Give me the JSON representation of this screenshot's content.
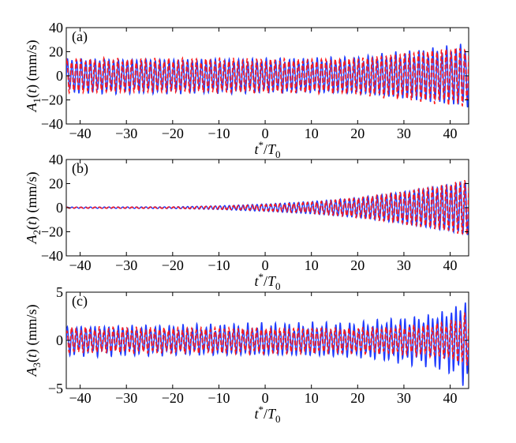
{
  "chart_data": [
    {
      "type": "line",
      "panel_label": "(a)",
      "xlabel": "t*/T0",
      "ylabel": "A1(t) (mm/s)",
      "xlim": [
        -43,
        44
      ],
      "ylim": [
        -40,
        40
      ],
      "xticks": [
        -40,
        -30,
        -20,
        -10,
        0,
        10,
        20,
        30,
        40
      ],
      "xtick_labels": [
        "−40",
        "−30",
        "−20",
        "−10",
        "0",
        "10",
        "20",
        "30",
        "40"
      ],
      "yticks": [
        -40,
        -20,
        0,
        20,
        40
      ],
      "ytick_labels": [
        "−40",
        "−20",
        "0",
        "20",
        "40"
      ],
      "grid": false,
      "period": 1,
      "series": [
        {
          "color": "#1f3cff",
          "style": "solid",
          "envelope_t": [
            -43,
            -20,
            0,
            10,
            20,
            25,
            30,
            35,
            40,
            43.5
          ],
          "envelope_amp": [
            13,
            13,
            13,
            13,
            14,
            16,
            18,
            20,
            22,
            24
          ],
          "noise": 0.18
        },
        {
          "color": "#ff1a1a",
          "style": "dashed",
          "envelope_t": [
            -43,
            -20,
            0,
            10,
            20,
            25,
            30,
            35,
            40,
            43.5
          ],
          "envelope_amp": [
            13,
            13,
            13,
            13,
            14,
            16,
            18,
            20,
            22,
            23
          ],
          "noise": 0.15
        }
      ]
    },
    {
      "type": "line",
      "panel_label": "(b)",
      "xlabel": "t*/T0",
      "ylabel": "A2(t) (mm/s)",
      "xlim": [
        -43,
        44
      ],
      "ylim": [
        -40,
        40
      ],
      "xticks": [
        -40,
        -30,
        -20,
        -10,
        0,
        10,
        20,
        30,
        40
      ],
      "xtick_labels": [
        "−40",
        "−30",
        "−20",
        "−10",
        "0",
        "10",
        "20",
        "30",
        "40"
      ],
      "yticks": [
        -40,
        -20,
        0,
        20,
        40
      ],
      "ytick_labels": [
        "−40",
        "−20",
        "0",
        "20",
        "40"
      ],
      "grid": false,
      "period": 1,
      "series": [
        {
          "color": "#1f3cff",
          "style": "solid",
          "envelope_t": [
            -43,
            -20,
            -10,
            0,
            10,
            20,
            30,
            40,
            43.5
          ],
          "envelope_amp": [
            0.5,
            0.7,
            1.5,
            3,
            5,
            8,
            13,
            19,
            22
          ],
          "noise": 0.05
        },
        {
          "color": "#ff1a1a",
          "style": "dashed",
          "envelope_t": [
            -43,
            -20,
            -10,
            0,
            10,
            20,
            30,
            40,
            43.5
          ],
          "envelope_amp": [
            0.4,
            0.6,
            1.2,
            2.5,
            4.5,
            8,
            13,
            19,
            23
          ],
          "noise": 0.05
        }
      ]
    },
    {
      "type": "line",
      "panel_label": "(c)",
      "xlabel": "t*/T0",
      "ylabel": "A3(t) (mm/s)",
      "xlim": [
        -43,
        44
      ],
      "ylim": [
        -5,
        5
      ],
      "xticks": [
        -40,
        -30,
        -20,
        -10,
        0,
        10,
        20,
        30,
        40
      ],
      "xtick_labels": [
        "−40",
        "−30",
        "−20",
        "−10",
        "0",
        "10",
        "20",
        "30",
        "40"
      ],
      "yticks": [
        -5,
        0,
        5
      ],
      "ytick_labels": [
        "−5",
        "0",
        "5"
      ],
      "grid": false,
      "period": 1,
      "series": [
        {
          "color": "#1f3cff",
          "style": "solid",
          "envelope_t": [
            -43,
            -20,
            0,
            20,
            28,
            35,
            40,
            43.5
          ],
          "envelope_amp": [
            1.3,
            1.3,
            1.4,
            1.5,
            1.9,
            2.2,
            2.8,
            3.8
          ],
          "noise": 0.35
        },
        {
          "color": "#ff1a1a",
          "style": "dashed",
          "envelope_t": [
            -43,
            -20,
            0,
            20,
            28,
            35,
            40,
            43.5
          ],
          "envelope_amp": [
            1.2,
            1.2,
            1.2,
            1.2,
            1.3,
            1.5,
            1.8,
            2.5
          ],
          "noise": 0.2
        }
      ]
    }
  ]
}
